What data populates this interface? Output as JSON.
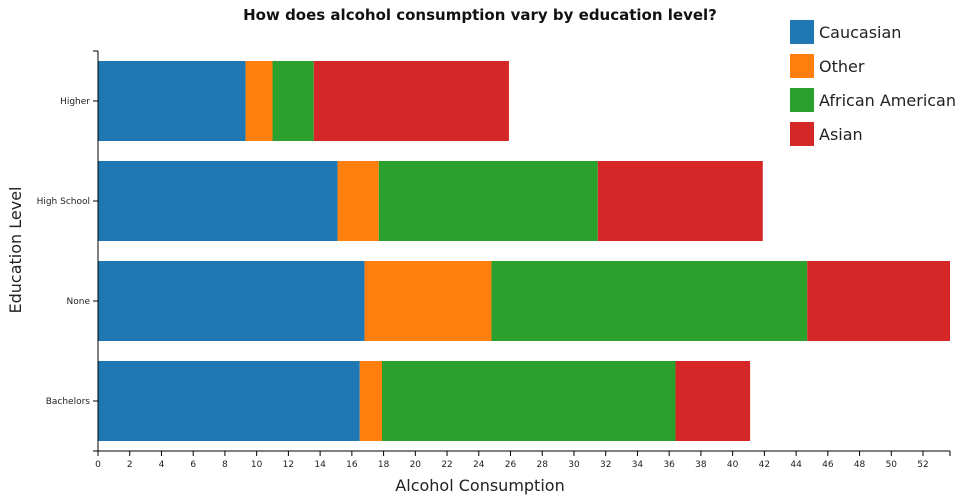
{
  "chart_data": {
    "type": "bar",
    "orientation": "horizontal",
    "stacked": true,
    "title": "How does alcohol consumption vary by education level?",
    "xlabel": "Alcohol Consumption",
    "ylabel": "Education Level",
    "xlim": [
      0,
      53.7
    ],
    "x_ticks": [
      0,
      2,
      4,
      6,
      8,
      10,
      12,
      14,
      16,
      18,
      20,
      22,
      24,
      26,
      28,
      30,
      32,
      34,
      36,
      38,
      40,
      42,
      44,
      46,
      48,
      50,
      52
    ],
    "categories": [
      "Higher",
      "High School",
      "None",
      "Bachelors"
    ],
    "series": [
      {
        "name": "Caucasian",
        "color": "#1f77b4",
        "values": [
          9.3,
          15.1,
          16.8,
          16.5
        ]
      },
      {
        "name": "Other",
        "color": "#ff7f0e",
        "values": [
          1.7,
          2.6,
          8.0,
          1.4
        ]
      },
      {
        "name": "African American",
        "color": "#2ca02c",
        "values": [
          2.6,
          13.8,
          19.9,
          18.5
        ]
      },
      {
        "name": "Asian",
        "color": "#d62728",
        "values": [
          12.3,
          10.4,
          9.0,
          4.7
        ]
      }
    ],
    "legend_position": "top-right",
    "grid": false
  }
}
